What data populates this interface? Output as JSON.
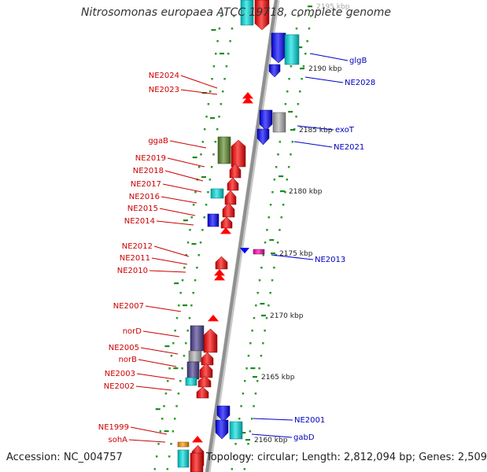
{
  "title": "Nitrosomonas europaea ATCC 19718, complete genome",
  "accession": "Accession: NC_004757",
  "topology": "Topology: circular; Length: 2,812,094 bp; Genes: 2,509",
  "colors": {
    "forward": "#ff0000",
    "reverse": "#0000ff",
    "rna": "#00e0e0",
    "pseudo": "#b0b0b0",
    "other": "#4b3f8f",
    "misc": "#ff00aa",
    "highlight": "#5e8a2a",
    "orange": "#ff9900",
    "backbone": "#909090"
  },
  "scale_labels": [
    "2195 kbp",
    "2190 kbp",
    "2185 kbp",
    "2180 kbp",
    "2175 kbp",
    "2170 kbp",
    "2165 kbp",
    "2160 kbp"
  ],
  "left_labels": [
    "NE2024",
    "NE2023",
    "ggaB",
    "NE2019",
    "NE2018",
    "NE2017",
    "NE2016",
    "NE2015",
    "NE2014",
    "NE2012",
    "NE2011",
    "NE2010",
    "NE2007",
    "norD",
    "NE2005",
    "norB",
    "NE2003",
    "NE2002",
    "NE1999",
    "sohA"
  ],
  "right_labels": [
    "glgB",
    "NE2028",
    "exoT",
    "NE2021",
    "NE2013",
    "NE2001",
    "gabD"
  ]
}
